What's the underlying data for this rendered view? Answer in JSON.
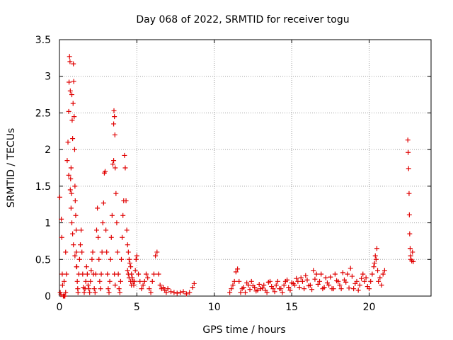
{
  "chart_data": {
    "type": "scatter",
    "title": "Day 068 of 2022, SRMTID for receiver togu",
    "xlabel": "GPS time / hours",
    "ylabel": "SRMTID / TECUs",
    "xlim": [
      0,
      24
    ],
    "ylim": [
      0,
      3.5
    ],
    "xticks": [
      0,
      5,
      10,
      15,
      20
    ],
    "yticks": [
      0,
      0.5,
      1,
      1.5,
      2,
      2.5,
      3,
      3.5
    ],
    "grid": true,
    "marker": "plus",
    "series": [
      {
        "name": "SRMTID",
        "color": "#e00000",
        "x": [
          0.02,
          0.05,
          0.1,
          0.12,
          0.15,
          0.18,
          0.2,
          0.25,
          0.3,
          0.35,
          0.4,
          0.45,
          0.5,
          0.55,
          0.6,
          0.62,
          0.65,
          0.68,
          0.7,
          0.72,
          0.75,
          0.78,
          0.8,
          0.82,
          0.85,
          0.88,
          0.9,
          0.92,
          0.95,
          0.98,
          1.0,
          1.02,
          1.05,
          1.08,
          1.1,
          1.12,
          1.15,
          1.18,
          1.2,
          1.25,
          1.3,
          1.35,
          1.4,
          1.45,
          1.5,
          1.55,
          1.6,
          1.65,
          1.7,
          1.75,
          1.8,
          1.85,
          1.9,
          1.95,
          2.0,
          2.05,
          2.1,
          2.15,
          2.2,
          2.25,
          2.3,
          2.35,
          2.4,
          2.45,
          2.5,
          2.55,
          2.6,
          2.65,
          2.7,
          2.75,
          2.8,
          2.85,
          2.9,
          2.95,
          3.0,
          3.05,
          3.1,
          3.15,
          3.2,
          3.25,
          3.3,
          3.35,
          3.4,
          3.45,
          3.5,
          3.52,
          3.55,
          3.58,
          3.6,
          3.65,
          3.7,
          3.75,
          3.8,
          3.85,
          3.9,
          3.95,
          4.0,
          4.05,
          4.1,
          4.15,
          4.2,
          4.25,
          4.3,
          4.35,
          4.4,
          4.45,
          4.5,
          4.55,
          4.6,
          4.65,
          4.7,
          4.75,
          4.8,
          4.85,
          4.9,
          4.95,
          5.0,
          5.1,
          5.2,
          5.3,
          5.4,
          5.5,
          5.6,
          5.7,
          5.8,
          5.9,
          6.0,
          6.1,
          6.2,
          6.3,
          6.4,
          6.5,
          6.6,
          6.7,
          6.8,
          6.9,
          7.0,
          7.2,
          7.4,
          7.6,
          7.8,
          8.0,
          8.2,
          8.4,
          8.6,
          8.7,
          0.6,
          0.7,
          0.75,
          0.8,
          0.85,
          0.9,
          1.0,
          1.1,
          3.5,
          3.55,
          3.6,
          4.4,
          4.45,
          4.5,
          4.6,
          4.65,
          0.3,
          0.4,
          11.0,
          11.2,
          11.4,
          11.5,
          11.6,
          11.8,
          12.0,
          12.2,
          12.4,
          12.6,
          12.8,
          13.0,
          13.2,
          13.4,
          13.6,
          13.8,
          14.0,
          14.2,
          14.4,
          14.6,
          14.8,
          15.0,
          15.2,
          15.4,
          15.6,
          15.8,
          16.0,
          16.2,
          16.4,
          16.6,
          16.8,
          17.0,
          17.2,
          17.4,
          17.6,
          17.8,
          18.0,
          18.2,
          18.4,
          18.6,
          18.8,
          19.0,
          19.2,
          19.4,
          19.6,
          19.8,
          20.0,
          20.1,
          20.2,
          20.3,
          20.4,
          20.5,
          20.6,
          20.7,
          20.8,
          20.9,
          21.0,
          11.1,
          11.3,
          11.7,
          11.9,
          12.1,
          12.3,
          12.5,
          12.7,
          12.9,
          13.1,
          13.3,
          13.5,
          13.7,
          13.9,
          14.1,
          14.3,
          14.5,
          14.7,
          14.9,
          15.1,
          15.3,
          15.5,
          15.7,
          15.9,
          16.1,
          16.3,
          16.5,
          16.7,
          16.9,
          17.1,
          17.3,
          17.5,
          17.7,
          17.9,
          18.1,
          18.3,
          18.5,
          18.7,
          18.9,
          19.1,
          19.3,
          19.5,
          19.7,
          19.9,
          20.35,
          20.45,
          20.55,
          22.5,
          22.52,
          22.55,
          22.58,
          22.6,
          22.62,
          22.65,
          22.68,
          22.7,
          22.75,
          22.8,
          22.85
        ],
        "y": [
          1.35,
          0.05,
          0.02,
          1.05,
          0.8,
          0.3,
          0.15,
          0.0,
          0.0,
          0.0,
          0.05,
          0.3,
          1.85,
          2.1,
          2.52,
          2.92,
          3.27,
          3.2,
          2.8,
          1.6,
          1.75,
          1.4,
          2.75,
          2.4,
          2.15,
          2.63,
          3.17,
          2.93,
          2.45,
          2.0,
          1.5,
          1.3,
          1.1,
          0.9,
          0.6,
          0.4,
          0.2,
          0.1,
          0.05,
          0.3,
          0.5,
          0.7,
          0.9,
          0.6,
          0.3,
          0.12,
          0.05,
          0.1,
          0.2,
          0.4,
          0.3,
          0.15,
          0.1,
          0.05,
          0.2,
          0.35,
          0.5,
          0.6,
          0.3,
          0.1,
          0.05,
          0.3,
          0.9,
          1.2,
          0.8,
          0.5,
          0.2,
          0.1,
          0.3,
          0.6,
          1.0,
          1.27,
          1.68,
          1.7,
          0.9,
          0.6,
          0.3,
          0.1,
          0.05,
          0.2,
          0.5,
          0.8,
          1.1,
          1.8,
          2.35,
          2.53,
          2.45,
          2.2,
          1.75,
          1.4,
          1.0,
          0.6,
          0.3,
          0.1,
          0.05,
          0.2,
          0.5,
          0.8,
          1.1,
          1.3,
          1.92,
          1.75,
          1.3,
          0.9,
          0.7,
          0.6,
          0.5,
          0.45,
          0.4,
          0.3,
          0.25,
          0.2,
          0.15,
          0.2,
          0.35,
          0.5,
          0.55,
          0.3,
          0.2,
          0.1,
          0.15,
          0.2,
          0.3,
          0.25,
          0.1,
          0.05,
          0.2,
          0.3,
          0.55,
          0.6,
          0.3,
          0.15,
          0.1,
          0.12,
          0.08,
          0.05,
          0.1,
          0.06,
          0.05,
          0.04,
          0.05,
          0.06,
          0.03,
          0.05,
          0.12,
          0.17,
          1.65,
          1.45,
          1.2,
          1.0,
          0.85,
          0.7,
          0.55,
          0.4,
          1.85,
          0.3,
          0.15,
          0.35,
          0.3,
          0.25,
          0.2,
          0.15,
          0.2,
          0.6,
          0.05,
          0.15,
          0.33,
          0.37,
          0.2,
          0.1,
          0.05,
          0.15,
          0.2,
          0.12,
          0.08,
          0.1,
          0.15,
          0.05,
          0.2,
          0.1,
          0.15,
          0.1,
          0.05,
          0.2,
          0.12,
          0.18,
          0.15,
          0.2,
          0.25,
          0.1,
          0.22,
          0.15,
          0.35,
          0.3,
          0.2,
          0.1,
          0.25,
          0.15,
          0.1,
          0.3,
          0.2,
          0.1,
          0.22,
          0.3,
          0.38,
          0.1,
          0.2,
          0.15,
          0.3,
          0.25,
          0.1,
          0.2,
          0.3,
          0.4,
          0.55,
          0.65,
          0.2,
          0.25,
          0.15,
          0.3,
          0.35,
          0.1,
          0.2,
          0.05,
          0.12,
          0.18,
          0.09,
          0.14,
          0.07,
          0.16,
          0.11,
          0.08,
          0.19,
          0.13,
          0.06,
          0.2,
          0.1,
          0.15,
          0.22,
          0.08,
          0.17,
          0.24,
          0.12,
          0.2,
          0.28,
          0.14,
          0.09,
          0.23,
          0.16,
          0.3,
          0.12,
          0.18,
          0.26,
          0.1,
          0.21,
          0.15,
          0.32,
          0.19,
          0.11,
          0.27,
          0.17,
          0.08,
          0.24,
          0.2,
          0.13,
          0.45,
          0.5,
          0.35,
          2.13,
          1.96,
          1.74,
          1.4,
          1.11,
          0.85,
          0.65,
          0.55,
          0.5,
          0.48,
          0.6,
          0.47
        ]
      }
    ]
  }
}
